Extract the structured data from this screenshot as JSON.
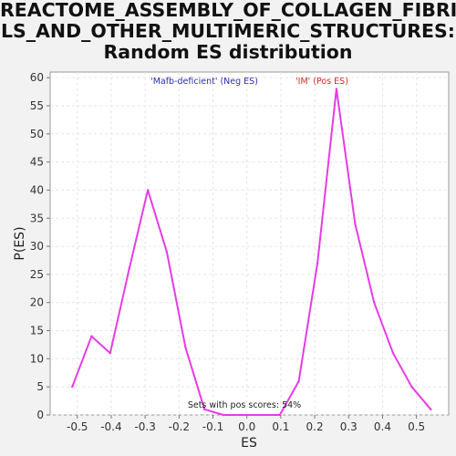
{
  "chart_data": {
    "type": "line",
    "title_lines": [
      "REACTOME_ASSEMBLY_OF_COLLAGEN_FIBRI",
      "LS_AND_OTHER_MULTIMERIC_STRUCTURES:",
      "Random ES distribution"
    ],
    "xlabel": "ES",
    "ylabel": "P(ES)",
    "xlim": [
      -0.58,
      0.595
    ],
    "ylim": [
      0,
      61
    ],
    "x_ticks": [
      -0.5,
      -0.4,
      -0.3,
      -0.2,
      -0.1,
      0.0,
      0.1,
      0.2,
      0.3,
      0.4,
      0.5
    ],
    "x_tick_labels": [
      "-0.5",
      "-0.4",
      "-0.3",
      "-0.2",
      "-0.1",
      "0.0",
      "0.1",
      "0.2",
      "0.3",
      "0.4",
      "0.5"
    ],
    "y_ticks": [
      0,
      5,
      10,
      15,
      20,
      25,
      30,
      35,
      40,
      45,
      50,
      55,
      60
    ],
    "y_tick_labels": [
      "0",
      "5",
      "10",
      "15",
      "20",
      "25",
      "30",
      "35",
      "40",
      "45",
      "50",
      "55",
      "60"
    ],
    "grid": true,
    "series": [
      {
        "color": "#e63ce6",
        "x": [
          -0.515,
          -0.458,
          -0.403,
          -0.347,
          -0.292,
          -0.236,
          -0.181,
          -0.125,
          -0.069,
          -0.014,
          0.042,
          0.097,
          0.153,
          0.208,
          0.264,
          0.319,
          0.375,
          0.431,
          0.486,
          0.542
        ],
        "y": [
          5,
          14,
          11,
          26,
          40,
          29,
          12,
          1,
          0,
          0,
          0,
          0,
          6,
          27,
          58,
          34,
          20,
          11,
          5,
          1
        ]
      }
    ],
    "annotations": {
      "neg_label": "'Mafb-deficient' (Neg ES)",
      "neg_color": "#2d2db4",
      "pos_label": "'IM' (Pos ES)",
      "pos_color": "#d42a2a",
      "footer": "Sets with pos scores: 54%"
    }
  }
}
